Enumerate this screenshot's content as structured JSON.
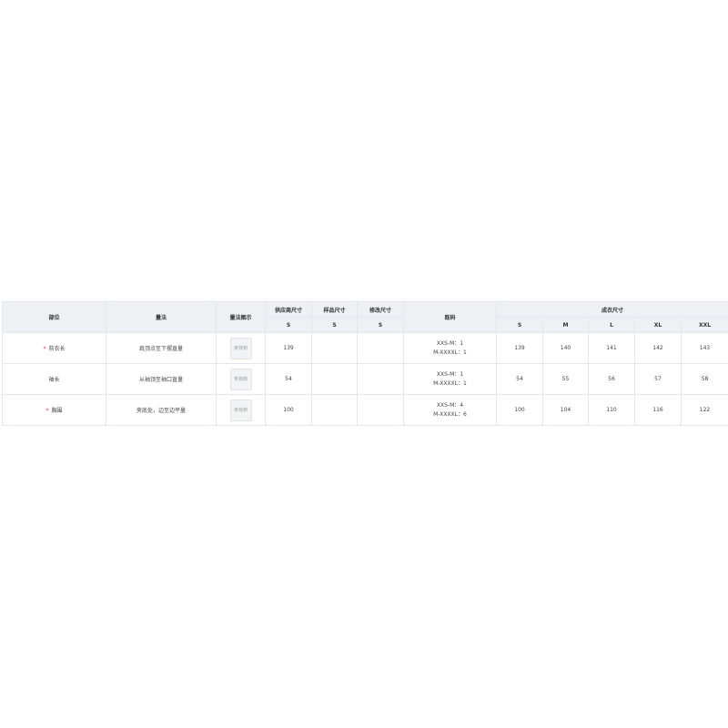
{
  "headers": {
    "part": "部位",
    "method": "量法",
    "diagram": "量法图示",
    "supplier": "供应商尺寸",
    "sample": "样品尺寸",
    "modified": "修改尺寸",
    "codes": "既码",
    "finished": "成衣尺寸",
    "supplier_size": "S",
    "sample_size": "S",
    "modified_size": "S",
    "sizes": [
      "S",
      "M",
      "L",
      "XL",
      "XXL"
    ]
  },
  "rows": [
    {
      "required": true,
      "part": "前衣长",
      "method": "肩顶点至下摆直量",
      "image": "未找到",
      "supplier": "139",
      "codes": [
        "XXS-M：1",
        "M-XXXXL：1"
      ],
      "values": [
        "139",
        "140",
        "141",
        "142",
        "143"
      ]
    },
    {
      "required": false,
      "part": "袖长",
      "method": "从袖顶至袖口直量",
      "image": "未找到",
      "supplier": "54",
      "codes": [
        "XXS-M：1",
        "M-XXXXL：1"
      ],
      "values": [
        "54",
        "55",
        "56",
        "57",
        "58"
      ]
    },
    {
      "required": true,
      "part": "胸围",
      "method": "夹底处，边至边平量",
      "image": "未找到",
      "supplier": "100",
      "codes": [
        "XXS-M：4",
        "M-XXXXL：6"
      ],
      "values": [
        "100",
        "104",
        "110",
        "116",
        "122"
      ]
    }
  ],
  "required_mark": "*"
}
